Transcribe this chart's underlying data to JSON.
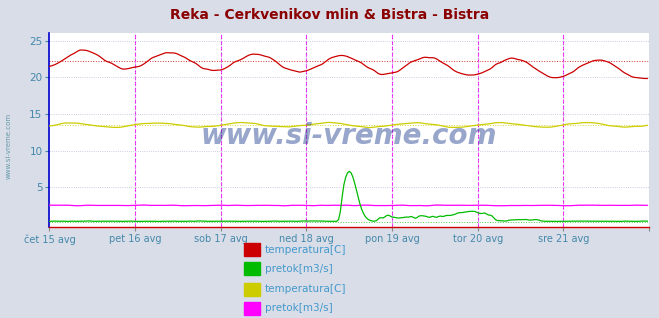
{
  "title": "Reka - Cerkvenikov mlin & Bistra - Bistra",
  "title_color": "#8B0000",
  "bg_color": "#d8dde8",
  "plot_bg_color": "#ffffff",
  "grid_color": "#bbbbdd",
  "watermark": "www.si-vreme.com",
  "watermark_color": "#1a3a8a",
  "ylabel_color": "#4488aa",
  "xlabel_color": "#4488aa",
  "x_tick_labels": [
    "čet 15 avg",
    "pet 16 avg",
    "sob 17 avg",
    "ned 18 avg",
    "pon 19 avg",
    "tor 20 avg",
    "sre 21 avg"
  ],
  "y_ticks": [
    5,
    10,
    15,
    20,
    25
  ],
  "ylim": [
    -0.5,
    26
  ],
  "xlim": [
    0,
    336
  ],
  "n_points": 336,
  "reka_temp_base": 22.5,
  "reka_temp_amplitude": 1.2,
  "reka_temp_trend": -1.5,
  "bistra_temp_base": 13.5,
  "bistra_temp_amplitude": 0.3,
  "reka_pretok_base": 0.3,
  "bistra_pretok_base": 2.5,
  "hline_reka_temp": 22.2,
  "hline_reka_pretok": 0.3,
  "hline_bistra_temp": 13.5,
  "hline_bistra_pretok": 2.5,
  "vline_color": "#ff00ff",
  "vline_positions": [
    48,
    96,
    144,
    192,
    240,
    288
  ],
  "border_color": "#0000cc",
  "reka_temp_color": "#cc0000",
  "reka_pretok_color": "#00bb00",
  "bistra_temp_color": "#cccc00",
  "bistra_pretok_color": "#ff00ff",
  "legend_items_group1": [
    {
      "color": "#cc0000",
      "label": "temperatura[C]"
    },
    {
      "color": "#00bb00",
      "label": "pretok[m3/s]"
    }
  ],
  "legend_items_group2": [
    {
      "color": "#cccc00",
      "label": "temperatura[C]"
    },
    {
      "color": "#ff00ff",
      "label": "pretok[m3/s]"
    }
  ]
}
